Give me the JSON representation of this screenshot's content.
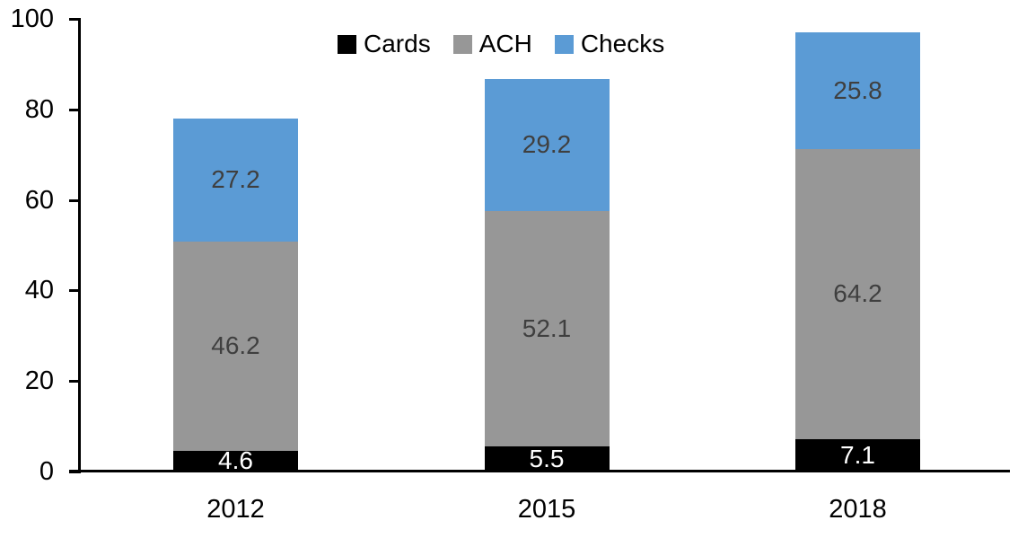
{
  "chart_data": {
    "type": "bar",
    "stacked": true,
    "title": "",
    "xlabel": "",
    "ylabel": "",
    "categories": [
      "2012",
      "2015",
      "2018"
    ],
    "series": [
      {
        "name": "Cards",
        "color": "#000000",
        "label_color": "#FFFFFF",
        "values": [
          4.6,
          5.5,
          7.1
        ]
      },
      {
        "name": "ACH",
        "color": "#979797",
        "label_color": "#3F3F3F",
        "values": [
          46.2,
          52.1,
          64.2
        ]
      },
      {
        "name": "Checks",
        "color": "#5B9BD5",
        "label_color": "#3F3F3F",
        "values": [
          27.2,
          29.2,
          25.8
        ]
      }
    ],
    "ylim": [
      0,
      100
    ],
    "yticks": [
      0,
      20,
      40,
      60,
      80,
      100
    ],
    "grid": false,
    "legend": {
      "position": "top",
      "entries": [
        "Cards",
        "ACH",
        "Checks"
      ]
    },
    "axis_color": "#000000",
    "text_color": "#000000",
    "data_labels_visible": true
  }
}
